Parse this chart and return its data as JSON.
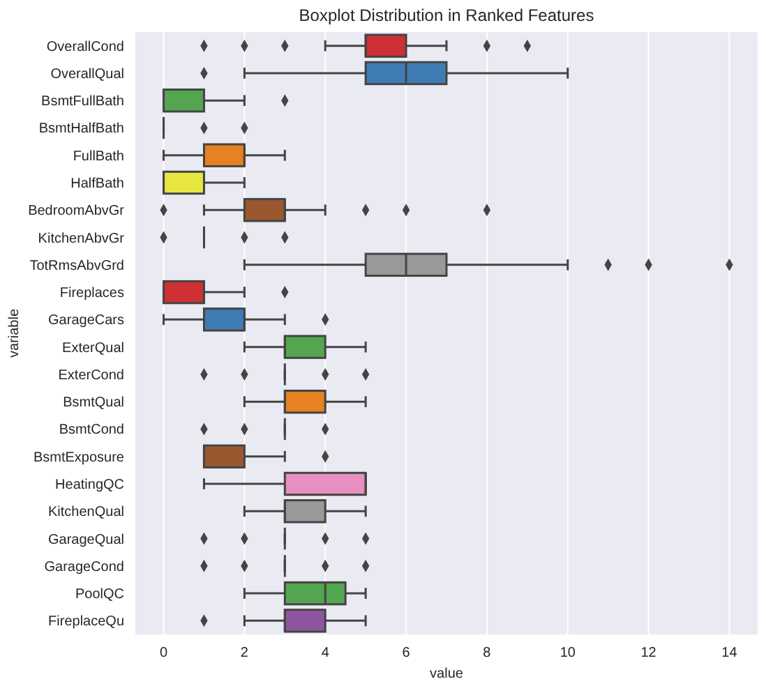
{
  "chart_data": {
    "type": "box",
    "orientation": "horizontal",
    "title": "Boxplot Distribution in Ranked Features",
    "xlabel": "value",
    "ylabel": "variable",
    "categories": [
      "OverallCond",
      "OverallQual",
      "BsmtFullBath",
      "BsmtHalfBath",
      "FullBath",
      "HalfBath",
      "BedroomAbvGr",
      "KitchenAbvGr",
      "TotRmsAbvGrd",
      "Fireplaces",
      "GarageCars",
      "ExterQual",
      "ExterCond",
      "BsmtQual",
      "BsmtCond",
      "BsmtExposure",
      "HeatingQC",
      "KitchenQual",
      "GarageQual",
      "GarageCond",
      "PoolQC",
      "FireplaceQu"
    ],
    "boxes": [
      {
        "low": 4,
        "q1": 5,
        "median": 5,
        "q3": 6,
        "high": 7,
        "outliers": [
          1,
          2,
          3,
          8,
          9
        ]
      },
      {
        "low": 2,
        "q1": 5,
        "median": 6,
        "q3": 7,
        "high": 10,
        "outliers": [
          1
        ]
      },
      {
        "low": 0,
        "q1": 0,
        "median": 0,
        "q3": 1,
        "high": 2,
        "outliers": [
          3
        ]
      },
      {
        "low": 0,
        "q1": 0,
        "median": 0,
        "q3": 0,
        "high": 0,
        "outliers": [
          1,
          2
        ]
      },
      {
        "low": 0,
        "q1": 1,
        "median": 2,
        "q3": 2,
        "high": 3
      },
      {
        "low": 0,
        "q1": 0,
        "median": 0,
        "q3": 1,
        "high": 2
      },
      {
        "low": 1,
        "q1": 2,
        "median": 3,
        "q3": 3,
        "high": 4,
        "outliers": [
          0,
          5,
          6,
          8
        ]
      },
      {
        "low": 1,
        "q1": 1,
        "median": 1,
        "q3": 1,
        "high": 1,
        "outliers": [
          0,
          2,
          3
        ]
      },
      {
        "low": 2,
        "q1": 5,
        "median": 6,
        "q3": 7,
        "high": 10,
        "outliers": [
          11,
          12,
          14
        ]
      },
      {
        "low": 0,
        "q1": 0,
        "median": 1,
        "q3": 1,
        "high": 2,
        "outliers": [
          3
        ]
      },
      {
        "low": 0,
        "q1": 1,
        "median": 2,
        "q3": 2,
        "high": 3,
        "outliers": [
          4
        ]
      },
      {
        "low": 2,
        "q1": 3,
        "median": 3,
        "q3": 4,
        "high": 5
      },
      {
        "low": 3,
        "q1": 3,
        "median": 3,
        "q3": 3,
        "high": 3,
        "outliers": [
          1,
          2,
          4,
          5
        ]
      },
      {
        "low": 2,
        "q1": 3,
        "median": 3,
        "q3": 4,
        "high": 5
      },
      {
        "low": 3,
        "q1": 3,
        "median": 3,
        "q3": 3,
        "high": 3,
        "outliers": [
          1,
          2,
          4
        ]
      },
      {
        "low": 1,
        "q1": 1,
        "median": 1,
        "q3": 2,
        "high": 3,
        "outliers": [
          4
        ]
      },
      {
        "low": 1,
        "q1": 3,
        "median": 5,
        "q3": 5,
        "high": 5
      },
      {
        "low": 2,
        "q1": 3,
        "median": 3,
        "q3": 4,
        "high": 5
      },
      {
        "low": 3,
        "q1": 3,
        "median": 3,
        "q3": 3,
        "high": 3,
        "outliers": [
          1,
          2,
          4,
          5
        ]
      },
      {
        "low": 3,
        "q1": 3,
        "median": 3,
        "q3": 3,
        "high": 3,
        "outliers": [
          1,
          2,
          4,
          5
        ]
      },
      {
        "low": 2,
        "q1": 3,
        "median": 4,
        "q3": 4.5,
        "high": 5
      },
      {
        "low": 2,
        "q1": 3,
        "median": 3,
        "q3": 4,
        "high": 5,
        "outliers": [
          1
        ]
      }
    ],
    "colors": [
      "#cf3035",
      "#3f7cb5",
      "#54a54f",
      "#444444",
      "#e68124",
      "#e7e640",
      "#9a5730",
      "#444444",
      "#999999",
      "#cf3035",
      "#3f7cb5",
      "#54a54f",
      "#444444",
      "#e68124",
      "#444444",
      "#9a5730",
      "#e68fc0",
      "#999999",
      "#444444",
      "#444444",
      "#54a54f",
      "#8d559d"
    ],
    "xlim": [
      -0.7,
      14.7
    ],
    "xticks": [
      0,
      2,
      4,
      6,
      8,
      10,
      12,
      14
    ],
    "grid": "x"
  }
}
